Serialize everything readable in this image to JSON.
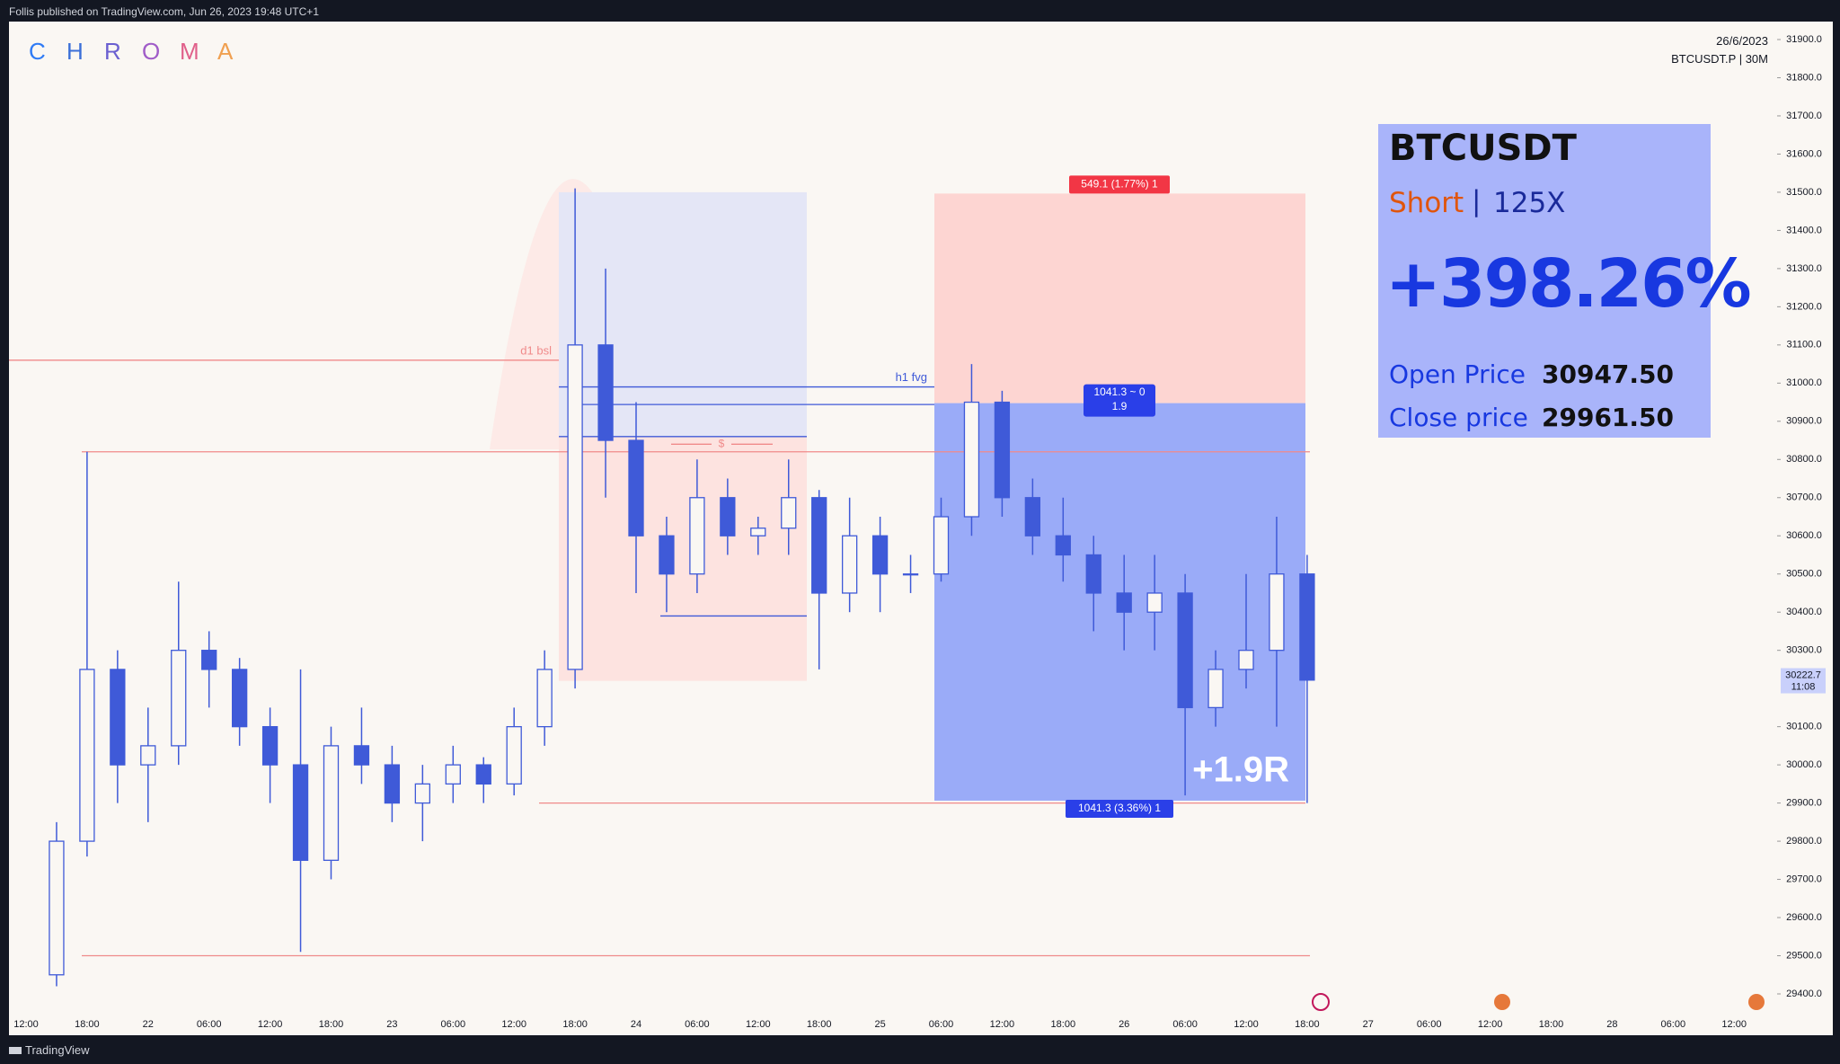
{
  "header": {
    "publisher": "Follis published on TradingView.com, Jun 26, 2023 19:48 UTC+1"
  },
  "logo": [
    {
      "text": "C",
      "color": "#2f7bf5"
    },
    {
      "text": "H",
      "color": "#3b6fd8"
    },
    {
      "text": "R",
      "color": "#6a5fd0"
    },
    {
      "text": "O",
      "color": "#a05cc8"
    },
    {
      "text": "M",
      "color": "#e0608a"
    },
    {
      "text": "A",
      "color": "#f0a050"
    }
  ],
  "info": {
    "date": "26/6/2023",
    "symbol": "BTCUSDT.P | 30M"
  },
  "card": {
    "symbol": "BTCUSDT",
    "side": "Short",
    "separator": "|",
    "leverage": "125X",
    "pnl": "+398.26%",
    "open_label": "Open Price",
    "open_value": "30947.50",
    "close_label": "Close price",
    "close_value": "29961.50"
  },
  "footer": "TradingView",
  "chart_data": {
    "type": "candlestick",
    "color": "#3f5ad8",
    "open": [
      29450,
      29800,
      30250,
      30000,
      30050,
      30300,
      30250,
      30100,
      30000,
      29750,
      30050,
      30000,
      29900,
      29950,
      30000,
      29950,
      30100,
      30250,
      31100,
      30850,
      30600,
      30500,
      30700,
      30600,
      30620,
      30700,
      30450,
      30600,
      30500,
      30500,
      30650,
      30950,
      30700,
      30600,
      30550,
      30450,
      30400,
      30450,
      30150,
      30250,
      30300,
      30500
    ],
    "high": [
      29850,
      30820,
      30300,
      30150,
      30480,
      30350,
      30280,
      30150,
      30250,
      30100,
      30150,
      30050,
      30000,
      30050,
      30020,
      30150,
      30300,
      31510,
      31300,
      30950,
      30650,
      30800,
      30750,
      30650,
      30800,
      30720,
      30700,
      30650,
      30550,
      30700,
      31050,
      30980,
      30750,
      30700,
      30600,
      30550,
      30550,
      30500,
      30300,
      30500,
      30650,
      30550
    ],
    "low": [
      29420,
      29760,
      29900,
      29850,
      30000,
      30150,
      30050,
      29900,
      29510,
      29700,
      29950,
      29850,
      29800,
      29900,
      29900,
      29920,
      30050,
      30200,
      30700,
      30450,
      30400,
      30450,
      30550,
      30550,
      30550,
      30250,
      30400,
      30400,
      30450,
      30480,
      30600,
      30650,
      30550,
      30480,
      30350,
      30300,
      30300,
      29920,
      30100,
      30200,
      30100,
      29900
    ],
    "close": [
      29800,
      30250,
      30000,
      30050,
      30300,
      30250,
      30100,
      30000,
      29750,
      30050,
      30000,
      29900,
      29950,
      30000,
      29950,
      30100,
      30250,
      31100,
      30850,
      30600,
      30500,
      30700,
      30600,
      30620,
      30700,
      30450,
      30600,
      30500,
      30500,
      30650,
      30950,
      30700,
      30600,
      30550,
      30450,
      30400,
      30450,
      30150,
      30250,
      30300,
      30500,
      30222
    ],
    "xticks": [
      "12:00",
      "18:00",
      "22",
      "06:00",
      "12:00",
      "18:00",
      "23",
      "06:00",
      "12:00",
      "18:00",
      "24",
      "06:00",
      "12:00",
      "18:00",
      "25",
      "06:00",
      "12:00",
      "18:00",
      "26",
      "06:00",
      "12:00",
      "18:00",
      "27",
      "06:00",
      "12:00",
      "18:00",
      "28",
      "06:00",
      "12:00"
    ],
    "ylim": [
      29400,
      31900
    ],
    "yticks": [
      {
        "value": 31900,
        "label": "31900.0"
      },
      {
        "value": 31800,
        "label": "31800.0"
      },
      {
        "value": 31700,
        "label": "31700.0"
      },
      {
        "value": 31600,
        "label": "31600.0"
      },
      {
        "value": 31500,
        "label": "31500.0"
      },
      {
        "value": 31400,
        "label": "31400.0"
      },
      {
        "value": 31300,
        "label": "31300.0"
      },
      {
        "value": 31200,
        "label": "31200.0"
      },
      {
        "value": 31100,
        "label": "31100.0"
      },
      {
        "value": 31000,
        "label": "31000.0"
      },
      {
        "value": 30900,
        "label": "30900.0"
      },
      {
        "value": 30800,
        "label": "30800.0"
      },
      {
        "value": 30700,
        "label": "30700.0"
      },
      {
        "value": 30600,
        "label": "30600.0"
      },
      {
        "value": 30500,
        "label": "30500.0"
      },
      {
        "value": 30400,
        "label": "30400.0"
      },
      {
        "value": 30300,
        "label": "30300.0"
      },
      {
        "value": 30100,
        "label": "30100.0"
      },
      {
        "value": 30000,
        "label": "30000.0"
      },
      {
        "value": 29900,
        "label": "29900.0"
      },
      {
        "value": 29800,
        "label": "29800.0"
      },
      {
        "value": 29700,
        "label": "29700.0"
      },
      {
        "value": 29600,
        "label": "29600.0"
      },
      {
        "value": 29500,
        "label": "29500.0"
      },
      {
        "value": 29400,
        "label": "29400.0"
      }
    ],
    "last_price": 30222.7,
    "last_time": "11:08",
    "levels": [
      {
        "price": 31060,
        "label": "d1 bsl"
      },
      {
        "price": 30820
      },
      {
        "price": 29500
      },
      {
        "price": 29900
      },
      {
        "price": 30990,
        "label": "h1 fvg"
      },
      {
        "price": 30944
      },
      {
        "price": 30860
      },
      {
        "price": 30390
      },
      {
        "price": 30840,
        "label": "$"
      }
    ],
    "zones": [
      {
        "top": 31500,
        "bottom": 30860,
        "color": "#e4e6f6"
      },
      {
        "top": 30860,
        "bottom": 30220,
        "color": "#fde3e0"
      }
    ],
    "position": {
      "stop": 31496.6,
      "entry": 30947.5,
      "target": 29906.2,
      "stop_label": "549.1 (1.77%) 1",
      "entry_label": [
        "1041.3 ~ 0",
        "1.9"
      ],
      "target_label": "1041.3 (3.36%) 1",
      "result": "+1.9R"
    }
  }
}
